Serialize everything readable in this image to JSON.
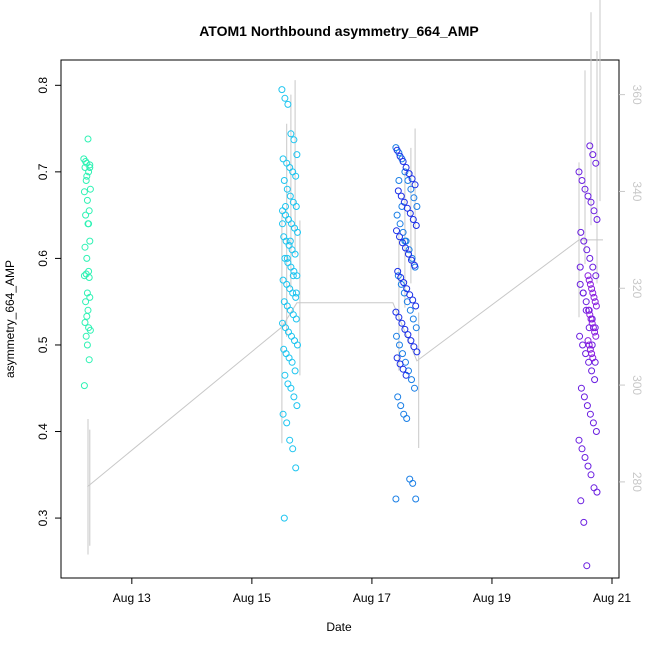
{
  "chart_data": {
    "type": "scatter",
    "title": "ATOM1 Northbound asymmetry_664_AMP",
    "xlabel": "Date",
    "ylabel": "asymmetry_664_AMP",
    "x_ticks": [
      {
        "label": "Aug 13",
        "value": 13.0
      },
      {
        "label": "Aug 15",
        "value": 15.0
      },
      {
        "label": "Aug 17",
        "value": 17.0
      },
      {
        "label": "Aug 19",
        "value": 19.0
      },
      {
        "label": "Aug 21",
        "value": 21.0
      }
    ],
    "xlim": [
      11.97,
      21.0
    ],
    "ylim": [
      0.24,
      0.82
    ],
    "y_ticks": [
      "0.3",
      "0.4",
      "0.5",
      "0.6",
      "0.7",
      "0.8"
    ],
    "y2lim": [
      261.8,
      365.5
    ],
    "y2_ticks": [
      "280",
      "300",
      "320",
      "340",
      "360"
    ],
    "grid": false,
    "colors": {
      "axis": "#000000",
      "secondary_axis": "#c8c8c8",
      "trace": "#c8c8c8"
    },
    "series": [
      {
        "color": "#2ef2b4",
        "x": [
          12.2,
          12.25,
          12.3,
          12.22,
          12.28,
          12.24,
          12.31,
          12.21,
          12.26,
          12.29,
          12.23,
          12.27,
          12.3,
          12.22,
          12.25,
          12.28,
          12.24,
          12.21,
          12.29,
          12.26,
          12.3,
          12.23,
          12.27,
          12.25,
          12.22,
          12.28,
          12.31,
          12.24,
          12.26,
          12.29,
          12.21,
          12.27,
          12.3,
          12.23,
          12.25,
          12.28
        ],
        "y": [
          0.715,
          0.71,
          0.708,
          0.705,
          0.7,
          0.69,
          0.68,
          0.677,
          0.667,
          0.655,
          0.65,
          0.64,
          0.62,
          0.613,
          0.6,
          0.585,
          0.582,
          0.58,
          0.578,
          0.56,
          0.555,
          0.55,
          0.54,
          0.533,
          0.526,
          0.52,
          0.517,
          0.51,
          0.5,
          0.483,
          0.453,
          0.738,
          0.705,
          0.712,
          0.695,
          0.64
        ]
      },
      {
        "color": "#1ec5f0",
        "x": [
          15.5,
          15.55,
          15.6,
          15.65,
          15.7,
          15.75,
          15.52,
          15.58,
          15.63,
          15.68,
          15.73,
          15.54,
          15.59,
          15.64,
          15.69,
          15.74,
          15.51,
          15.56,
          15.61,
          15.66,
          15.71,
          15.76,
          15.53,
          15.57,
          15.62,
          15.67,
          15.72,
          15.55,
          15.6,
          15.65,
          15.7,
          15.75,
          15.52,
          15.58,
          15.63,
          15.68,
          15.73,
          15.54,
          15.59,
          15.64,
          15.69,
          15.74,
          15.51,
          15.56,
          15.61,
          15.66,
          15.71,
          15.76,
          15.53,
          15.57,
          15.62,
          15.67,
          15.72,
          15.55,
          15.6,
          15.65,
          15.7,
          15.75,
          15.52,
          15.58,
          15.63,
          15.68,
          15.73,
          15.54,
          15.59,
          15.64,
          15.69,
          15.74,
          15.51,
          15.56
        ],
        "y": [
          0.795,
          0.785,
          0.778,
          0.744,
          0.737,
          0.72,
          0.715,
          0.71,
          0.705,
          0.7,
          0.695,
          0.69,
          0.68,
          0.672,
          0.665,
          0.66,
          0.655,
          0.65,
          0.645,
          0.64,
          0.635,
          0.63,
          0.625,
          0.62,
          0.615,
          0.61,
          0.605,
          0.6,
          0.595,
          0.59,
          0.585,
          0.58,
          0.575,
          0.57,
          0.565,
          0.56,
          0.555,
          0.55,
          0.545,
          0.54,
          0.535,
          0.53,
          0.525,
          0.52,
          0.515,
          0.51,
          0.505,
          0.5,
          0.495,
          0.49,
          0.485,
          0.48,
          0.47,
          0.465,
          0.455,
          0.45,
          0.44,
          0.43,
          0.42,
          0.41,
          0.39,
          0.38,
          0.358,
          0.3,
          0.6,
          0.62,
          0.58,
          0.56,
          0.64,
          0.66
        ]
      },
      {
        "color": "#1a7fe6",
        "x": [
          17.4,
          17.45,
          17.5,
          17.55,
          17.6,
          17.65,
          17.7,
          17.75,
          17.42,
          17.47,
          17.52,
          17.57,
          17.62,
          17.67,
          17.72,
          17.44,
          17.49,
          17.54,
          17.59,
          17.64,
          17.69,
          17.74,
          17.41,
          17.46,
          17.51,
          17.56,
          17.61,
          17.66,
          17.71,
          17.43,
          17.48,
          17.53,
          17.58,
          17.63,
          17.68,
          17.73,
          17.4,
          17.45,
          17.5,
          17.55
        ],
        "y": [
          0.728,
          0.722,
          0.715,
          0.7,
          0.69,
          0.68,
          0.67,
          0.66,
          0.65,
          0.64,
          0.63,
          0.62,
          0.61,
          0.6,
          0.59,
          0.58,
          0.57,
          0.56,
          0.55,
          0.54,
          0.53,
          0.52,
          0.51,
          0.5,
          0.49,
          0.48,
          0.47,
          0.46,
          0.45,
          0.44,
          0.43,
          0.42,
          0.415,
          0.345,
          0.34,
          0.322,
          0.322,
          0.69,
          0.66,
          0.62
        ]
      },
      {
        "color": "#1a2ee8",
        "x": [
          17.42,
          17.47,
          17.52,
          17.57,
          17.62,
          17.67,
          17.72,
          17.44,
          17.49,
          17.54,
          17.59,
          17.64,
          17.69,
          17.74,
          17.41,
          17.46,
          17.51,
          17.56,
          17.61,
          17.66,
          17.71,
          17.43,
          17.48,
          17.53,
          17.58,
          17.63,
          17.68,
          17.73,
          17.4,
          17.45,
          17.5,
          17.55,
          17.6,
          17.65,
          17.7,
          17.75,
          17.42,
          17.47,
          17.52,
          17.57
        ],
        "y": [
          0.725,
          0.718,
          0.712,
          0.705,
          0.698,
          0.692,
          0.685,
          0.678,
          0.672,
          0.665,
          0.658,
          0.652,
          0.645,
          0.638,
          0.632,
          0.625,
          0.618,
          0.612,
          0.605,
          0.598,
          0.592,
          0.585,
          0.578,
          0.572,
          0.565,
          0.558,
          0.552,
          0.545,
          0.538,
          0.532,
          0.525,
          0.518,
          0.512,
          0.505,
          0.498,
          0.492,
          0.485,
          0.478,
          0.472,
          0.465
        ]
      },
      {
        "color": "#6a1ee0",
        "x": [
          20.45,
          20.5,
          20.55,
          20.6,
          20.65,
          20.7,
          20.75,
          20.48,
          20.53,
          20.58,
          20.63,
          20.68,
          20.73,
          20.47,
          20.52,
          20.57,
          20.62,
          20.67,
          20.72,
          20.46,
          20.51,
          20.56,
          20.61,
          20.66,
          20.71,
          20.49,
          20.54,
          20.59,
          20.64,
          20.69,
          20.74,
          20.45,
          20.5,
          20.55,
          20.6,
          20.65,
          20.7,
          20.75,
          20.48,
          20.53,
          20.58,
          20.63,
          20.68,
          20.73,
          20.47,
          20.52,
          20.57,
          20.62,
          20.67,
          20.72
        ],
        "y": [
          0.7,
          0.69,
          0.68,
          0.672,
          0.665,
          0.655,
          0.645,
          0.63,
          0.62,
          0.61,
          0.6,
          0.59,
          0.58,
          0.57,
          0.56,
          0.55,
          0.54,
          0.53,
          0.52,
          0.51,
          0.5,
          0.49,
          0.48,
          0.47,
          0.46,
          0.45,
          0.44,
          0.43,
          0.42,
          0.41,
          0.4,
          0.39,
          0.38,
          0.37,
          0.36,
          0.35,
          0.335,
          0.33,
          0.32,
          0.295,
          0.245,
          0.73,
          0.72,
          0.71,
          0.59,
          0.56,
          0.54,
          0.52,
          0.5,
          0.48
        ]
      },
      {
        "color": "#8a1ee0",
        "x": [
          20.6,
          20.62,
          20.64,
          20.66,
          20.68,
          20.7,
          20.72,
          20.74,
          20.61,
          20.63,
          20.65,
          20.67,
          20.69,
          20.71,
          20.73,
          20.6,
          20.62,
          20.64,
          20.66,
          20.68
        ],
        "y": [
          0.58,
          0.575,
          0.57,
          0.565,
          0.56,
          0.555,
          0.55,
          0.545,
          0.54,
          0.535,
          0.53,
          0.525,
          0.52,
          0.515,
          0.51,
          0.505,
          0.5,
          0.495,
          0.49,
          0.485
        ]
      }
    ],
    "trace": {
      "x": [
        12.23,
        12.27,
        12.3,
        15.5,
        15.58,
        15.65,
        15.72,
        15.8,
        17.45,
        17.55,
        17.65,
        17.72,
        17.78,
        20.45,
        20.55,
        20.65,
        20.75,
        20.8
      ],
      "y": [
        272.4,
        279,
        278.8,
        312,
        332,
        340,
        345,
        318,
        317,
        330,
        335,
        339,
        301,
        330,
        345,
        355,
        345,
        360
      ],
      "noise_amplitude": [
        0,
        14,
        12,
        24,
        22,
        20,
        18,
        16,
        14,
        14,
        14,
        14,
        14,
        16,
        20,
        22,
        24,
        22
      ]
    },
    "trace_path": {
      "x": [
        12.26,
        15.5,
        15.75,
        17.35,
        17.75,
        20.45,
        20.85
      ],
      "y": [
        279,
        312,
        317,
        317,
        305,
        330,
        330
      ]
    }
  }
}
